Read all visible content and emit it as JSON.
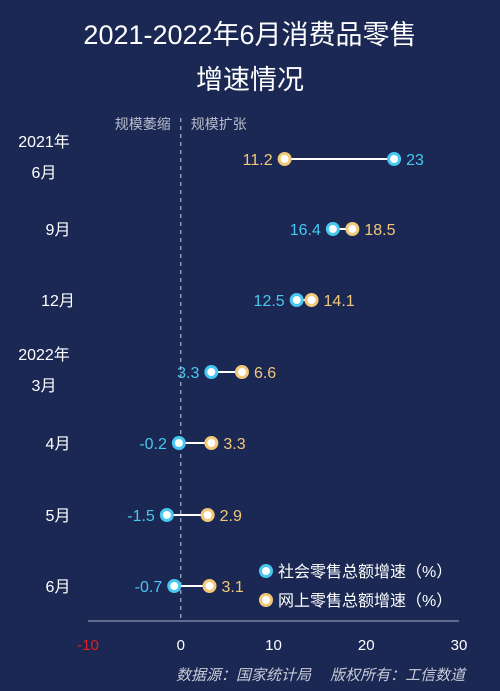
{
  "title_line1": "2021-2022年6月消费品零售",
  "title_line2": "增速情况",
  "zone_labels": {
    "left": "规模萎缩",
    "right": "规模扩张"
  },
  "source": "数据源：国家统计局　 版权所有：工信数道",
  "colors": {
    "background": "#1b2853",
    "social_retail": "#46c8f0",
    "online_retail": "#f2c879",
    "zero_tick": "#e02020",
    "connector": "#ffffff",
    "text": "#ffffff"
  },
  "chart_data": {
    "type": "dumbbell",
    "title": "2021-2022年6月消费品零售增速情况",
    "orientation": "horizontal",
    "categories": [
      [
        "2021年",
        "6月"
      ],
      [
        "9月"
      ],
      [
        "12月"
      ],
      [
        "2022年",
        "3月"
      ],
      [
        "4月"
      ],
      [
        "5月"
      ],
      [
        "6月"
      ]
    ],
    "series": [
      {
        "name": "社会零售总额增速（%）",
        "color": "#46c8f0",
        "values": [
          23,
          16.4,
          12.5,
          3.3,
          -0.2,
          -1.5,
          -0.7
        ]
      },
      {
        "name": "网上零售总额增速（%）",
        "color": "#f2c879",
        "values": [
          11.2,
          18.5,
          14.1,
          6.6,
          3.3,
          2.9,
          3.1
        ]
      }
    ],
    "x_ticks": [
      "-10",
      "0",
      "10",
      "20",
      "30"
    ],
    "xlim": [
      -10,
      30
    ],
    "grid": false,
    "reference_line": 0,
    "legend": "bottom-right"
  }
}
